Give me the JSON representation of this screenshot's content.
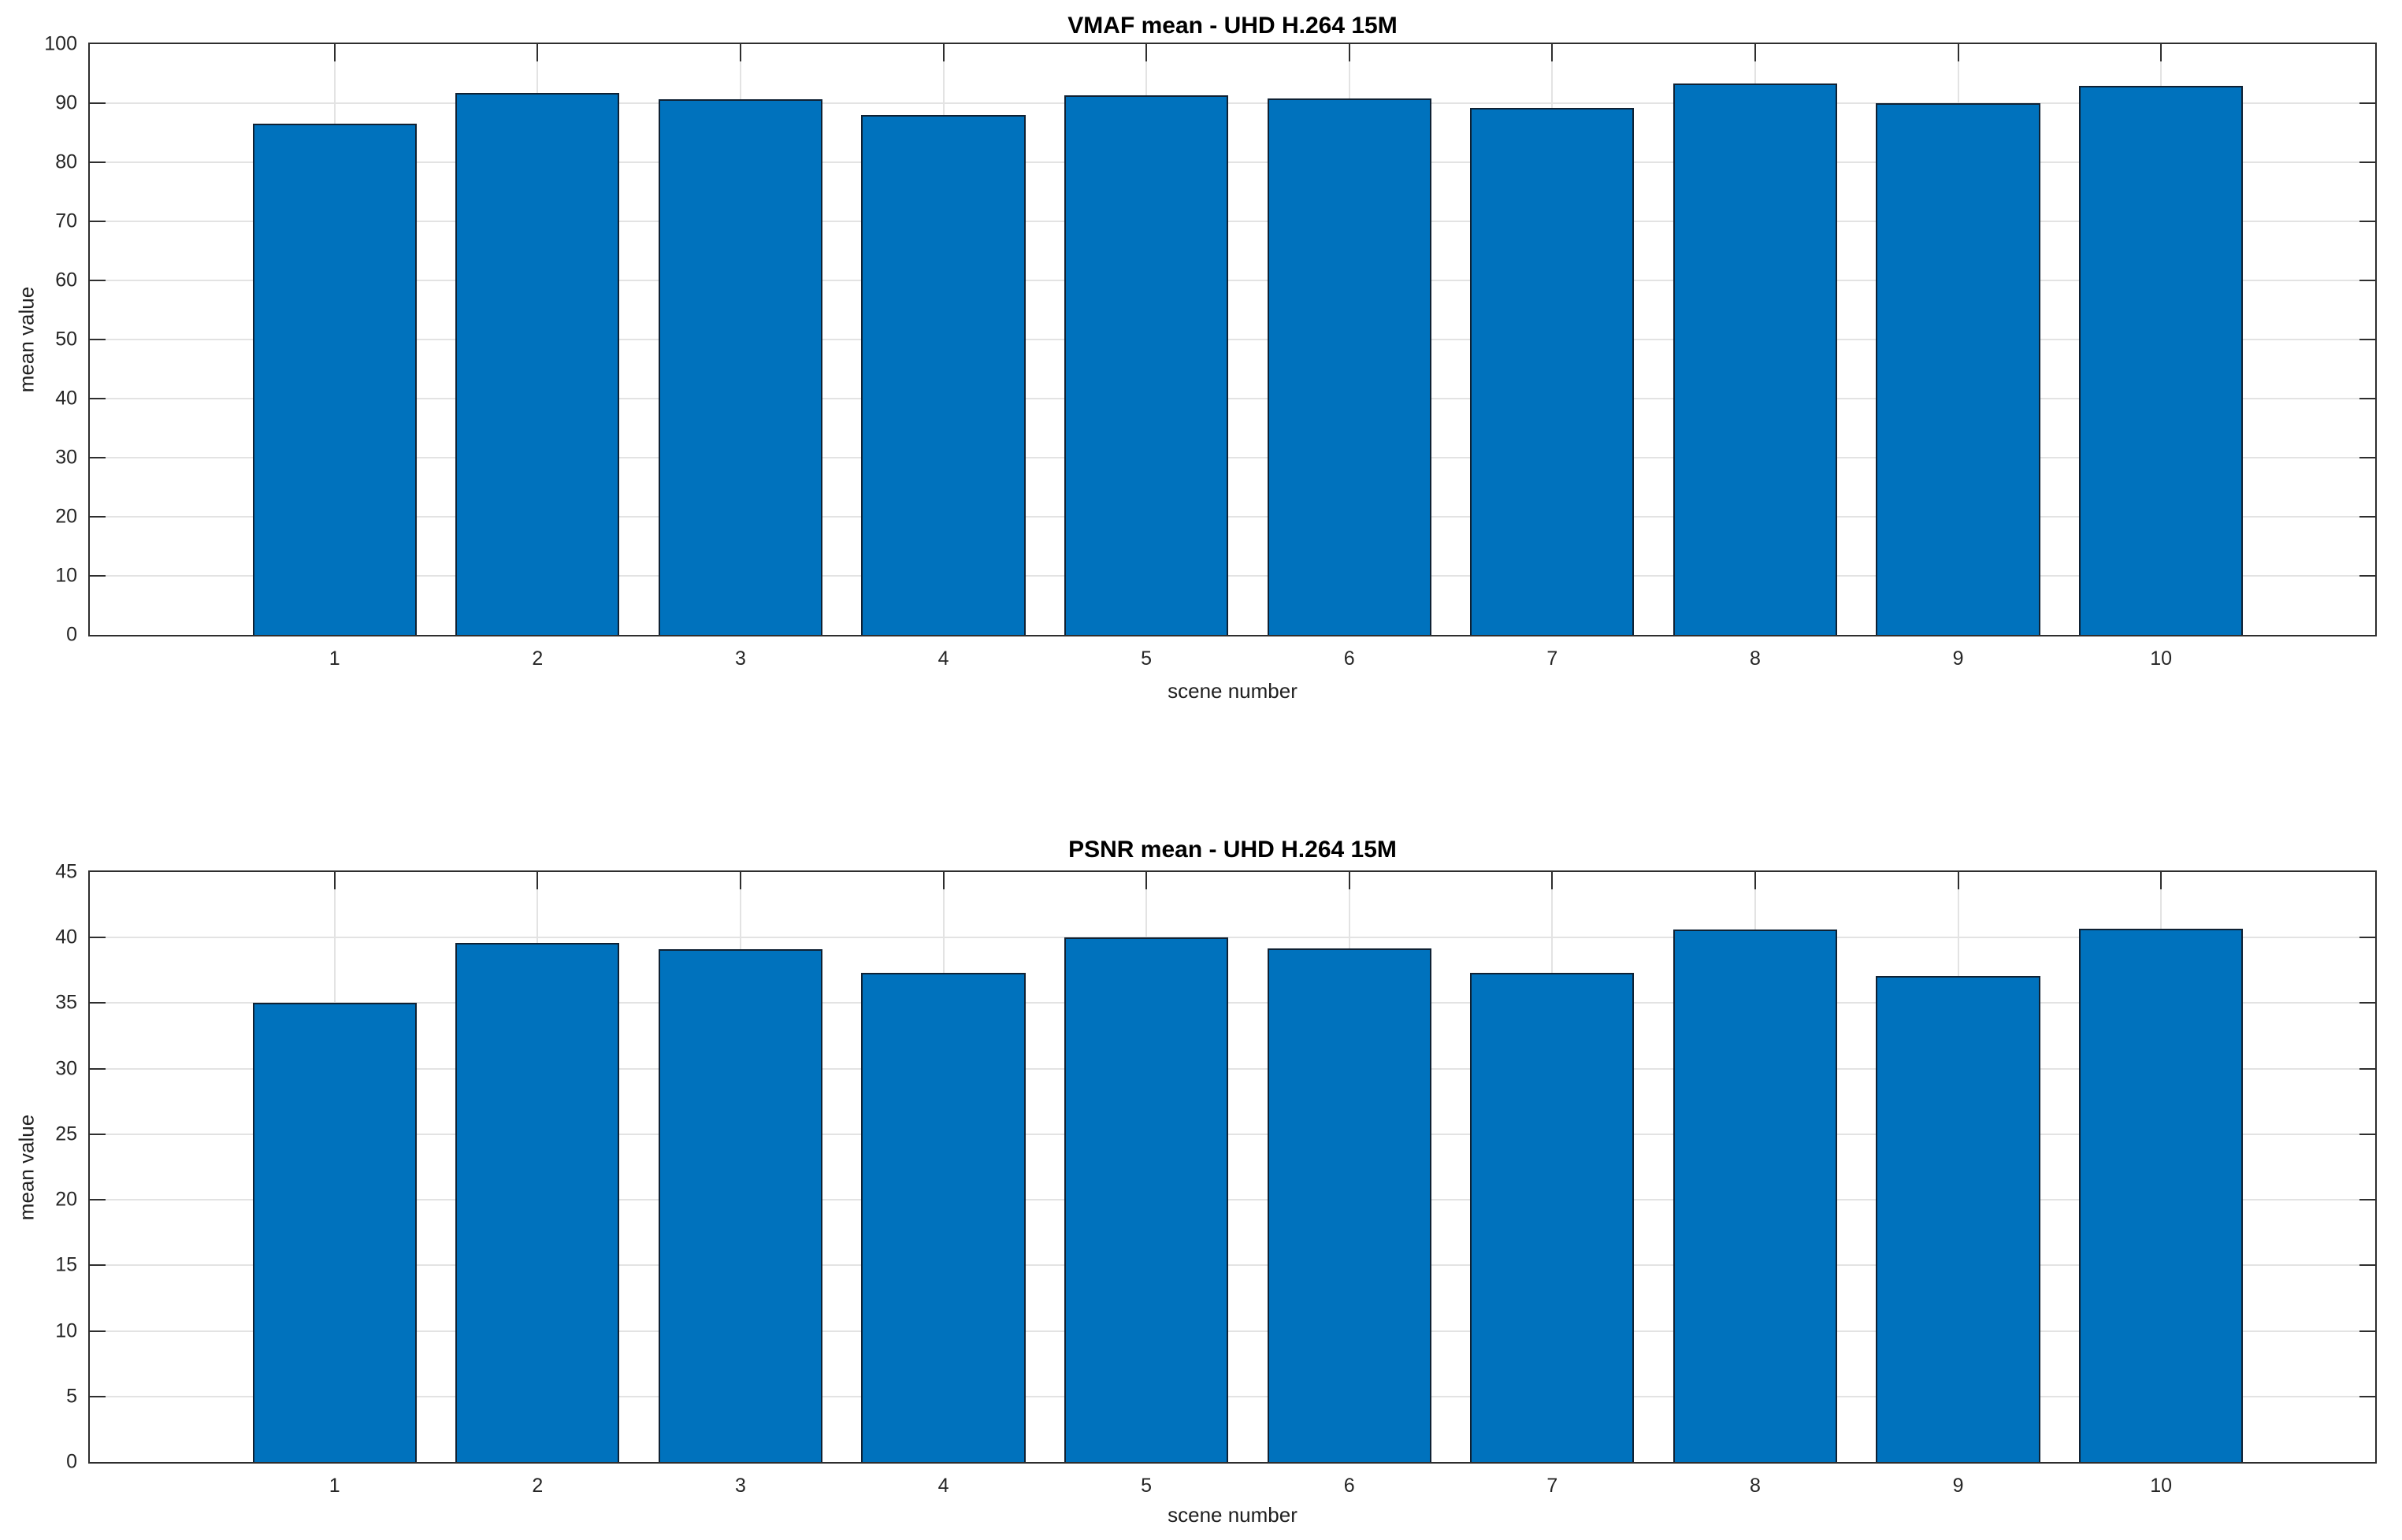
{
  "figure": {
    "background": "#ffffff",
    "axis_color": "#2e2e2e",
    "grid_color": "#e3e3e3",
    "text_color": "#1f1f1f",
    "tick_label_color": "#262626"
  },
  "chart_data": [
    {
      "type": "bar",
      "title": "VMAF mean - UHD H.264 15M",
      "xlabel": "scene number",
      "ylabel": "mean value",
      "categories": [
        "1",
        "2",
        "3",
        "4",
        "5",
        "6",
        "7",
        "8",
        "9",
        "10"
      ],
      "values": [
        86.5,
        91.8,
        90.7,
        88.0,
        91.4,
        90.8,
        89.2,
        93.4,
        90.0,
        92.9
      ],
      "ylim": [
        0,
        100
      ],
      "yticks": [
        0,
        10,
        20,
        30,
        40,
        50,
        60,
        70,
        80,
        90,
        100
      ],
      "grid": true,
      "legend_position": "none",
      "bar_color": "#0072BD",
      "bar_edge_color": "#0f2133"
    },
    {
      "type": "bar",
      "title": "PSNR mean - UHD H.264 15M",
      "xlabel": "scene number",
      "ylabel": "mean value",
      "categories": [
        "1",
        "2",
        "3",
        "4",
        "5",
        "6",
        "7",
        "8",
        "9",
        "10"
      ],
      "values": [
        35.0,
        39.6,
        39.1,
        37.3,
        40.0,
        39.2,
        37.3,
        40.6,
        37.1,
        40.7
      ],
      "ylim": [
        0,
        45
      ],
      "yticks": [
        0,
        5,
        10,
        15,
        20,
        25,
        30,
        35,
        40,
        45
      ],
      "grid": true,
      "legend_position": "none",
      "bar_color": "#0072BD",
      "bar_edge_color": "#0f2133"
    }
  ]
}
